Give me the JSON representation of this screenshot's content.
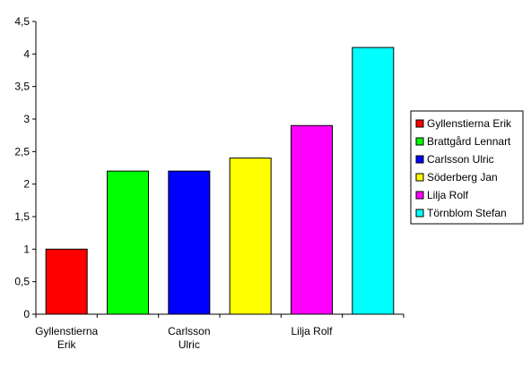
{
  "chart_data": {
    "type": "bar",
    "categories": [
      "Gyllenstierna Erik",
      "Brattgård Lennart",
      "Carlsson Ulric",
      "Söderberg Jan",
      "Lilja Rolf",
      "Törnblom Stefan"
    ],
    "category_tick_labels": [
      [
        "Gyllenstierna",
        "Erik"
      ],
      [],
      [
        "Carlsson",
        "Ulric"
      ],
      [],
      [
        "Lilja Rolf"
      ],
      []
    ],
    "values": [
      1,
      2.2,
      2.2,
      2.4,
      2.9,
      4.1
    ],
    "colors": [
      "#ff0000",
      "#00ff00",
      "#0000ff",
      "#ffff00",
      "#ff00ff",
      "#00ffff"
    ],
    "y_ticks": [
      "0",
      "0,5",
      "1",
      "1,5",
      "2",
      "2,5",
      "3",
      "3,5",
      "4",
      "4,5"
    ],
    "ylim": [
      0,
      4.5
    ],
    "grid": false,
    "legend": {
      "placement": "right",
      "entries": [
        "Gyllenstierna Erik",
        "Brattgård Lennart",
        "Carlsson Ulric",
        "Söderberg Jan",
        "Lilja Rolf",
        "Törnblom Stefan"
      ]
    }
  }
}
